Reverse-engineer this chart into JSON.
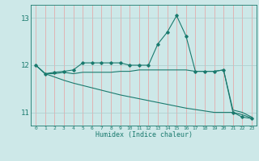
{
  "background_color": "#cde8e8",
  "grid_color_v": "#e8a0a0",
  "grid_color_h": "#aacccc",
  "line_color": "#1a7a6e",
  "xlabel": "Humidex (Indice chaleur)",
  "xlim": [
    -0.5,
    23.5
  ],
  "ylim": [
    10.72,
    13.28
  ],
  "yticks": [
    11,
    12,
    13
  ],
  "xticks": [
    0,
    1,
    2,
    3,
    4,
    5,
    6,
    7,
    8,
    9,
    10,
    11,
    12,
    13,
    14,
    15,
    16,
    17,
    18,
    19,
    20,
    21,
    22,
    23
  ],
  "series": [
    {
      "x": [
        0,
        1,
        2,
        3,
        4,
        5,
        6,
        7,
        8,
        9,
        10,
        11,
        12,
        13,
        14,
        15,
        16,
        17,
        18,
        19,
        20,
        21,
        22,
        23
      ],
      "y": [
        12.0,
        11.82,
        11.85,
        11.87,
        11.9,
        12.05,
        12.05,
        12.05,
        12.05,
        12.05,
        12.0,
        12.0,
        12.0,
        12.45,
        12.7,
        13.05,
        12.62,
        11.87,
        11.87,
        11.87,
        11.9,
        11.0,
        10.9,
        10.87
      ],
      "marker": true
    },
    {
      "x": [
        0,
        1,
        2,
        3,
        4,
        5,
        6,
        7,
        8,
        9,
        10,
        11,
        12,
        13,
        14,
        15,
        16,
        17,
        18,
        19,
        20,
        21,
        22,
        23
      ],
      "y": [
        12.0,
        11.82,
        11.82,
        11.85,
        11.82,
        11.85,
        11.85,
        11.85,
        11.85,
        11.87,
        11.87,
        11.9,
        11.9,
        11.9,
        11.9,
        11.9,
        11.9,
        11.87,
        11.87,
        11.87,
        11.9,
        11.05,
        11.0,
        10.9
      ],
      "marker": false
    },
    {
      "x": [
        0,
        1,
        2,
        3,
        4,
        5,
        6,
        7,
        8,
        9,
        10,
        11,
        12,
        13,
        14,
        15,
        16,
        17,
        18,
        19,
        20,
        21,
        22,
        23
      ],
      "y": [
        12.0,
        11.82,
        11.75,
        11.68,
        11.62,
        11.57,
        11.52,
        11.47,
        11.42,
        11.37,
        11.33,
        11.29,
        11.25,
        11.21,
        11.17,
        11.13,
        11.09,
        11.06,
        11.03,
        11.0,
        11.0,
        11.0,
        10.95,
        10.88
      ],
      "marker": false
    }
  ],
  "figsize": [
    3.2,
    2.0
  ],
  "dpi": 100
}
